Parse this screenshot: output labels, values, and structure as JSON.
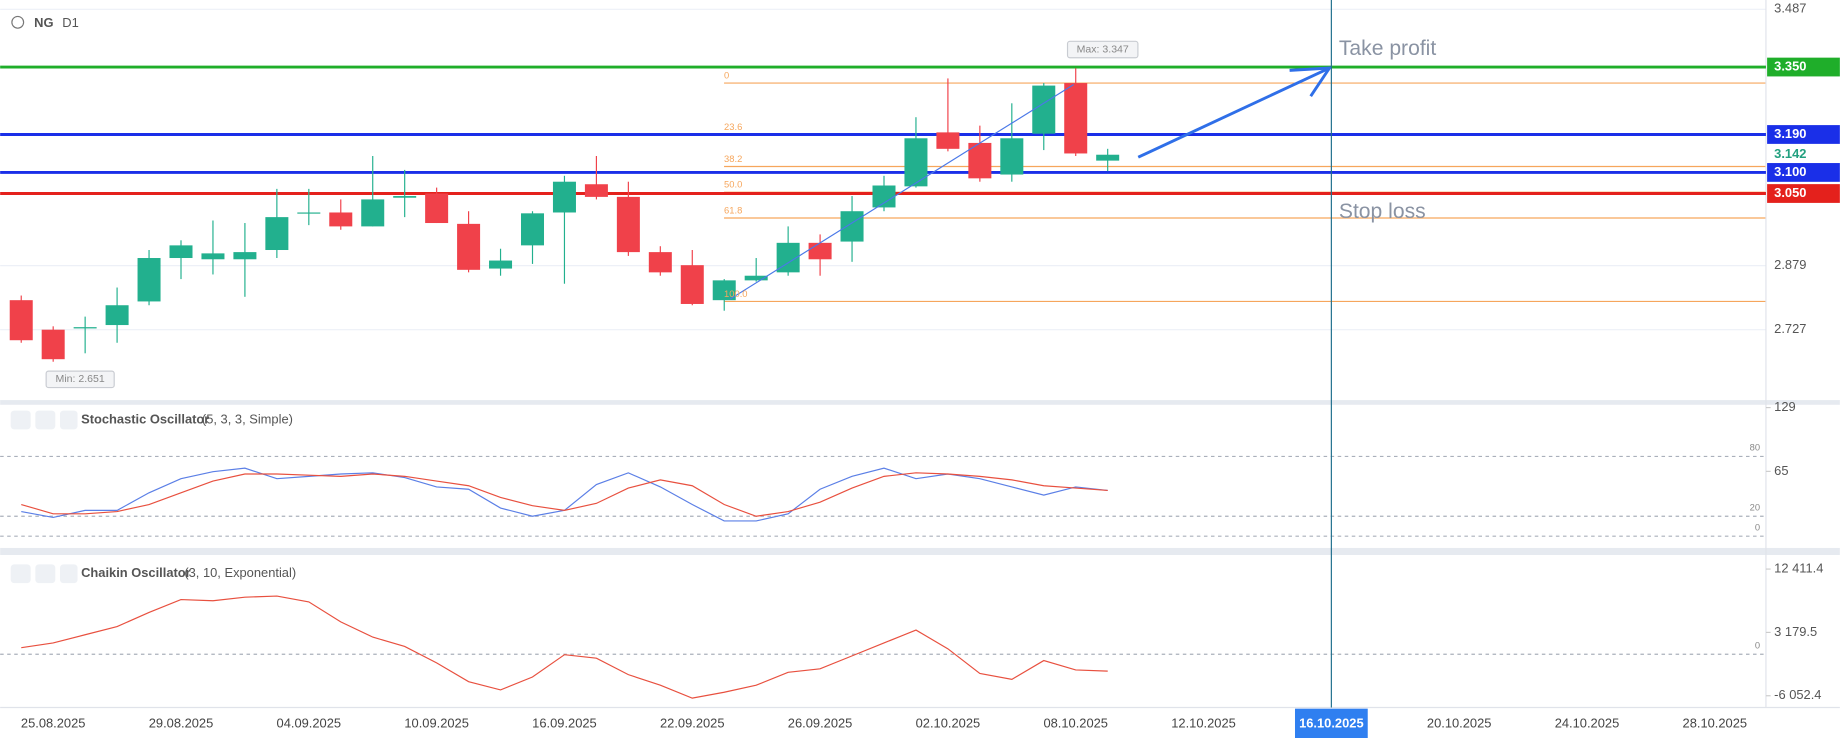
{
  "header": {
    "symbol": "NG",
    "timeframe": "D1"
  },
  "chart_data": [
    {
      "type": "candlestick",
      "open": [
        2.797,
        2.727,
        2.73,
        2.738,
        2.794,
        2.897,
        2.894,
        2.894,
        2.916,
        3.003,
        3.005,
        2.972,
        3.04,
        3.05,
        2.978,
        2.872,
        2.927,
        3.005,
        3.072,
        3.042,
        2.911,
        2.88,
        2.797,
        2.844,
        2.863,
        2.933,
        2.936,
        3.017,
        3.067,
        3.195,
        3.17,
        3.095,
        3.192,
        3.312,
        3.128
      ],
      "high": [
        2.808,
        2.735,
        2.758,
        2.827,
        2.916,
        2.939,
        2.986,
        2.98,
        3.061,
        3.061,
        3.036,
        3.139,
        3.106,
        3.064,
        3.008,
        2.919,
        3.008,
        3.092,
        3.139,
        3.078,
        2.925,
        2.916,
        2.847,
        2.897,
        2.972,
        2.953,
        3.044,
        3.092,
        3.231,
        3.323,
        3.211,
        3.264,
        3.312,
        3.347,
        3.156
      ],
      "low": [
        2.696,
        2.651,
        2.671,
        2.696,
        2.785,
        2.847,
        2.858,
        2.805,
        2.897,
        2.975,
        2.964,
        2.972,
        2.994,
        2.98,
        2.863,
        2.855,
        2.883,
        2.836,
        3.036,
        2.902,
        2.855,
        2.785,
        2.772,
        2.841,
        2.855,
        2.855,
        2.888,
        3.008,
        3.064,
        3.15,
        3.078,
        3.078,
        3.153,
        3.139,
        3.103
      ],
      "close": [
        2.702,
        2.657,
        2.733,
        2.785,
        2.897,
        2.927,
        2.908,
        2.911,
        2.994,
        3.005,
        2.972,
        3.036,
        3.044,
        2.98,
        2.869,
        2.891,
        3.003,
        3.078,
        3.042,
        2.911,
        2.863,
        2.788,
        2.844,
        2.855,
        2.933,
        2.894,
        3.008,
        3.069,
        3.181,
        3.156,
        3.086,
        3.181,
        3.306,
        3.145,
        3.142
      ],
      "up_color": "#22b08e",
      "down_color": "#f0414a",
      "ylim": [
        2.56,
        3.509
      ],
      "yticks": [
        3.487,
        2.879,
        2.727
      ],
      "xlim": [
        -0.66,
        54.6
      ],
      "xticks": [
        {
          "value": 1,
          "label": "25.08.2025"
        },
        {
          "value": 5,
          "label": "29.08.2025"
        },
        {
          "value": 9,
          "label": "04.09.2025"
        },
        {
          "value": 13,
          "label": "10.09.2025"
        },
        {
          "value": 17,
          "label": "16.09.2025"
        },
        {
          "value": 21,
          "label": "22.09.2025"
        },
        {
          "value": 25,
          "label": "26.09.2025"
        },
        {
          "value": 29,
          "label": "02.10.2025"
        },
        {
          "value": 33,
          "label": "08.10.2025"
        },
        {
          "value": 37,
          "label": "12.10.2025"
        },
        {
          "value": 41,
          "label": "16.10.2025"
        },
        {
          "value": 45,
          "label": "20.10.2025"
        },
        {
          "value": 49,
          "label": "24.10.2025"
        },
        {
          "value": 53,
          "label": "28.10.2025"
        }
      ],
      "cursor_date": "16.10.2025",
      "current_price": 3.142,
      "price_lines": [
        {
          "value": 3.35,
          "label": "3.350",
          "color": "#1fae2a"
        },
        {
          "value": 3.19,
          "label": "3.190",
          "color": "#1a2fe8"
        },
        {
          "value": 3.1,
          "label": "3.100",
          "color": "#1a2fe8"
        },
        {
          "value": 3.05,
          "label": "3.050",
          "color": "#e4211c"
        }
      ],
      "fib": {
        "high": 3.312,
        "low": 2.794,
        "color": "#f6a65c",
        "levels": [
          0,
          23.6,
          38.2,
          {
            "value": 50,
            "label": "50.0"
          },
          61.8,
          {
            "value": 100,
            "label": "100.0"
          }
        ]
      },
      "max_label": "Max: 3.347",
      "min_label": "Min: 2.651",
      "take_profit": "Take profit",
      "stop_loss": "Stop loss"
    },
    {
      "type": "line",
      "title": "Stochastic Oscillator",
      "params": "(5, 3, 3, Simple)",
      "ylim": [
        -11.8,
        131.8
      ],
      "yticks": [
        129,
        65
      ],
      "levels": [
        80,
        20,
        0
      ],
      "series": [
        {
          "color": "#5b7fe6",
          "values": [
            24.7,
            18.8,
            25.9,
            25.9,
            43.5,
            57.6,
            64.7,
            68.2,
            57.6,
            60.0,
            62.4,
            63.5,
            58.8,
            49.4,
            47.1,
            28.2,
            20.0,
            25.9,
            51.8,
            63.5,
            49.4,
            31.8,
            15.3,
            15.3,
            22.4,
            47.1,
            60.0,
            68.2,
            57.6,
            62.4,
            57.6,
            49.4,
            41.2,
            49.4,
            45.9
          ]
        },
        {
          "color": "#e8503f",
          "values": [
            31.8,
            22.4,
            22.4,
            24.7,
            31.8,
            43.5,
            55.3,
            62.4,
            62.4,
            61.2,
            60.0,
            62.4,
            60.0,
            55.3,
            50.6,
            38.8,
            30.6,
            25.9,
            32.9,
            48.2,
            56.5,
            50.6,
            31.8,
            20.0,
            24.7,
            34.1,
            48.2,
            60.0,
            63.5,
            62.4,
            60.0,
            56.5,
            50.6,
            48.2,
            45.9
          ]
        }
      ]
    },
    {
      "type": "line",
      "title": "Chaikin Oscillator",
      "params": "(3, 10, Exponential)",
      "ylim": [
        -7763,
        14296
      ],
      "yticks": [
        {
          "value": 12411.4,
          "label": "12 411.4"
        },
        {
          "value": 3179.5,
          "label": "3 179.5"
        },
        {
          "value": -6052.4,
          "label": "-6 052.4"
        }
      ],
      "levels": [
        0
      ],
      "series": [
        {
          "color": "#e8503f",
          "values": [
            958,
            1642,
            2839,
            4036,
            6088,
            7969,
            7798,
            8311,
            8482,
            7627,
            4720,
            2497,
            1129,
            -1265,
            -4001,
            -5198,
            -3317,
            -68,
            -581,
            -2975,
            -4514,
            -6395,
            -5540,
            -4514,
            -2633,
            -2120,
            -239,
            1642,
            3523,
            787,
            -2804,
            -3659,
            -924,
            -2291,
            -2462
          ]
        }
      ]
    }
  ]
}
